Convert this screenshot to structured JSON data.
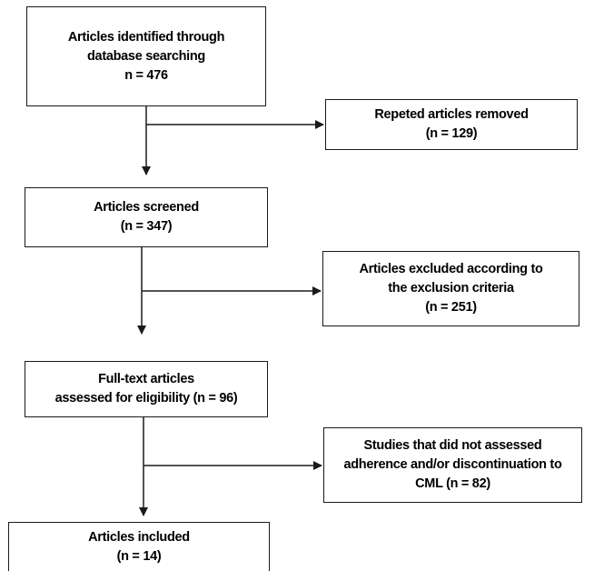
{
  "boxes": {
    "identified": {
      "lines": [
        "Articles identified through",
        "database searching",
        "n = 476"
      ]
    },
    "duplicates": {
      "lines": [
        "Repeted articles removed",
        "(n = 129)"
      ]
    },
    "screened": {
      "lines": [
        "Articles screened",
        "(n = 347)"
      ]
    },
    "excluded": {
      "lines": [
        "Articles excluded according to",
        "the exclusion criteria",
        "(n = 251)"
      ]
    },
    "fulltext": {
      "lines": [
        "Full-text articles",
        "assessed for eligibility (n = 96)"
      ]
    },
    "not_assessed": {
      "lines": [
        "Studies that did not assessed",
        "adherence and/or discontinuation to",
        "CML (n = 82)"
      ]
    },
    "included": {
      "lines": [
        "Articles included",
        "(n = 14)"
      ]
    }
  },
  "colors": {
    "line": "#1a1a1a",
    "background": "#ffffff",
    "text": "#000000"
  }
}
